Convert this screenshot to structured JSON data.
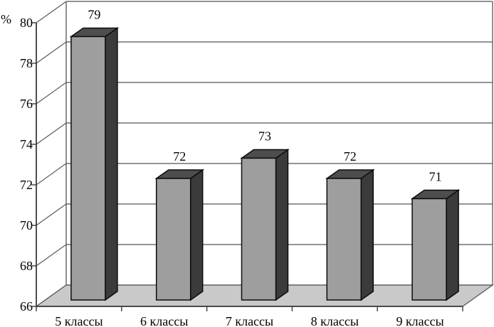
{
  "chart_data": {
    "type": "bar",
    "variant": "3d-column",
    "title": "",
    "ylabel": "%",
    "xlabel": "",
    "categories": [
      "5 классы",
      "6 классы",
      "7 классы",
      "8 классы",
      "9 классы"
    ],
    "values": [
      79,
      72,
      73,
      72,
      71
    ],
    "ylim": [
      66,
      80
    ],
    "yticks": [
      80,
      78,
      76,
      74,
      72,
      70,
      68,
      66
    ],
    "ytick_step": 2,
    "grid": true,
    "legend_position": "none",
    "colors": {
      "background": "#ffffff",
      "bar_front": "#9e9e9e",
      "bar_top": "#4d4d4d",
      "bar_side": "#3b3b3b",
      "bar_outline": "#0d0d0d",
      "floor": "#c9c9c9",
      "wall_line": "#555555",
      "axis_line": "#3a3a3a",
      "text": "#000000"
    }
  }
}
